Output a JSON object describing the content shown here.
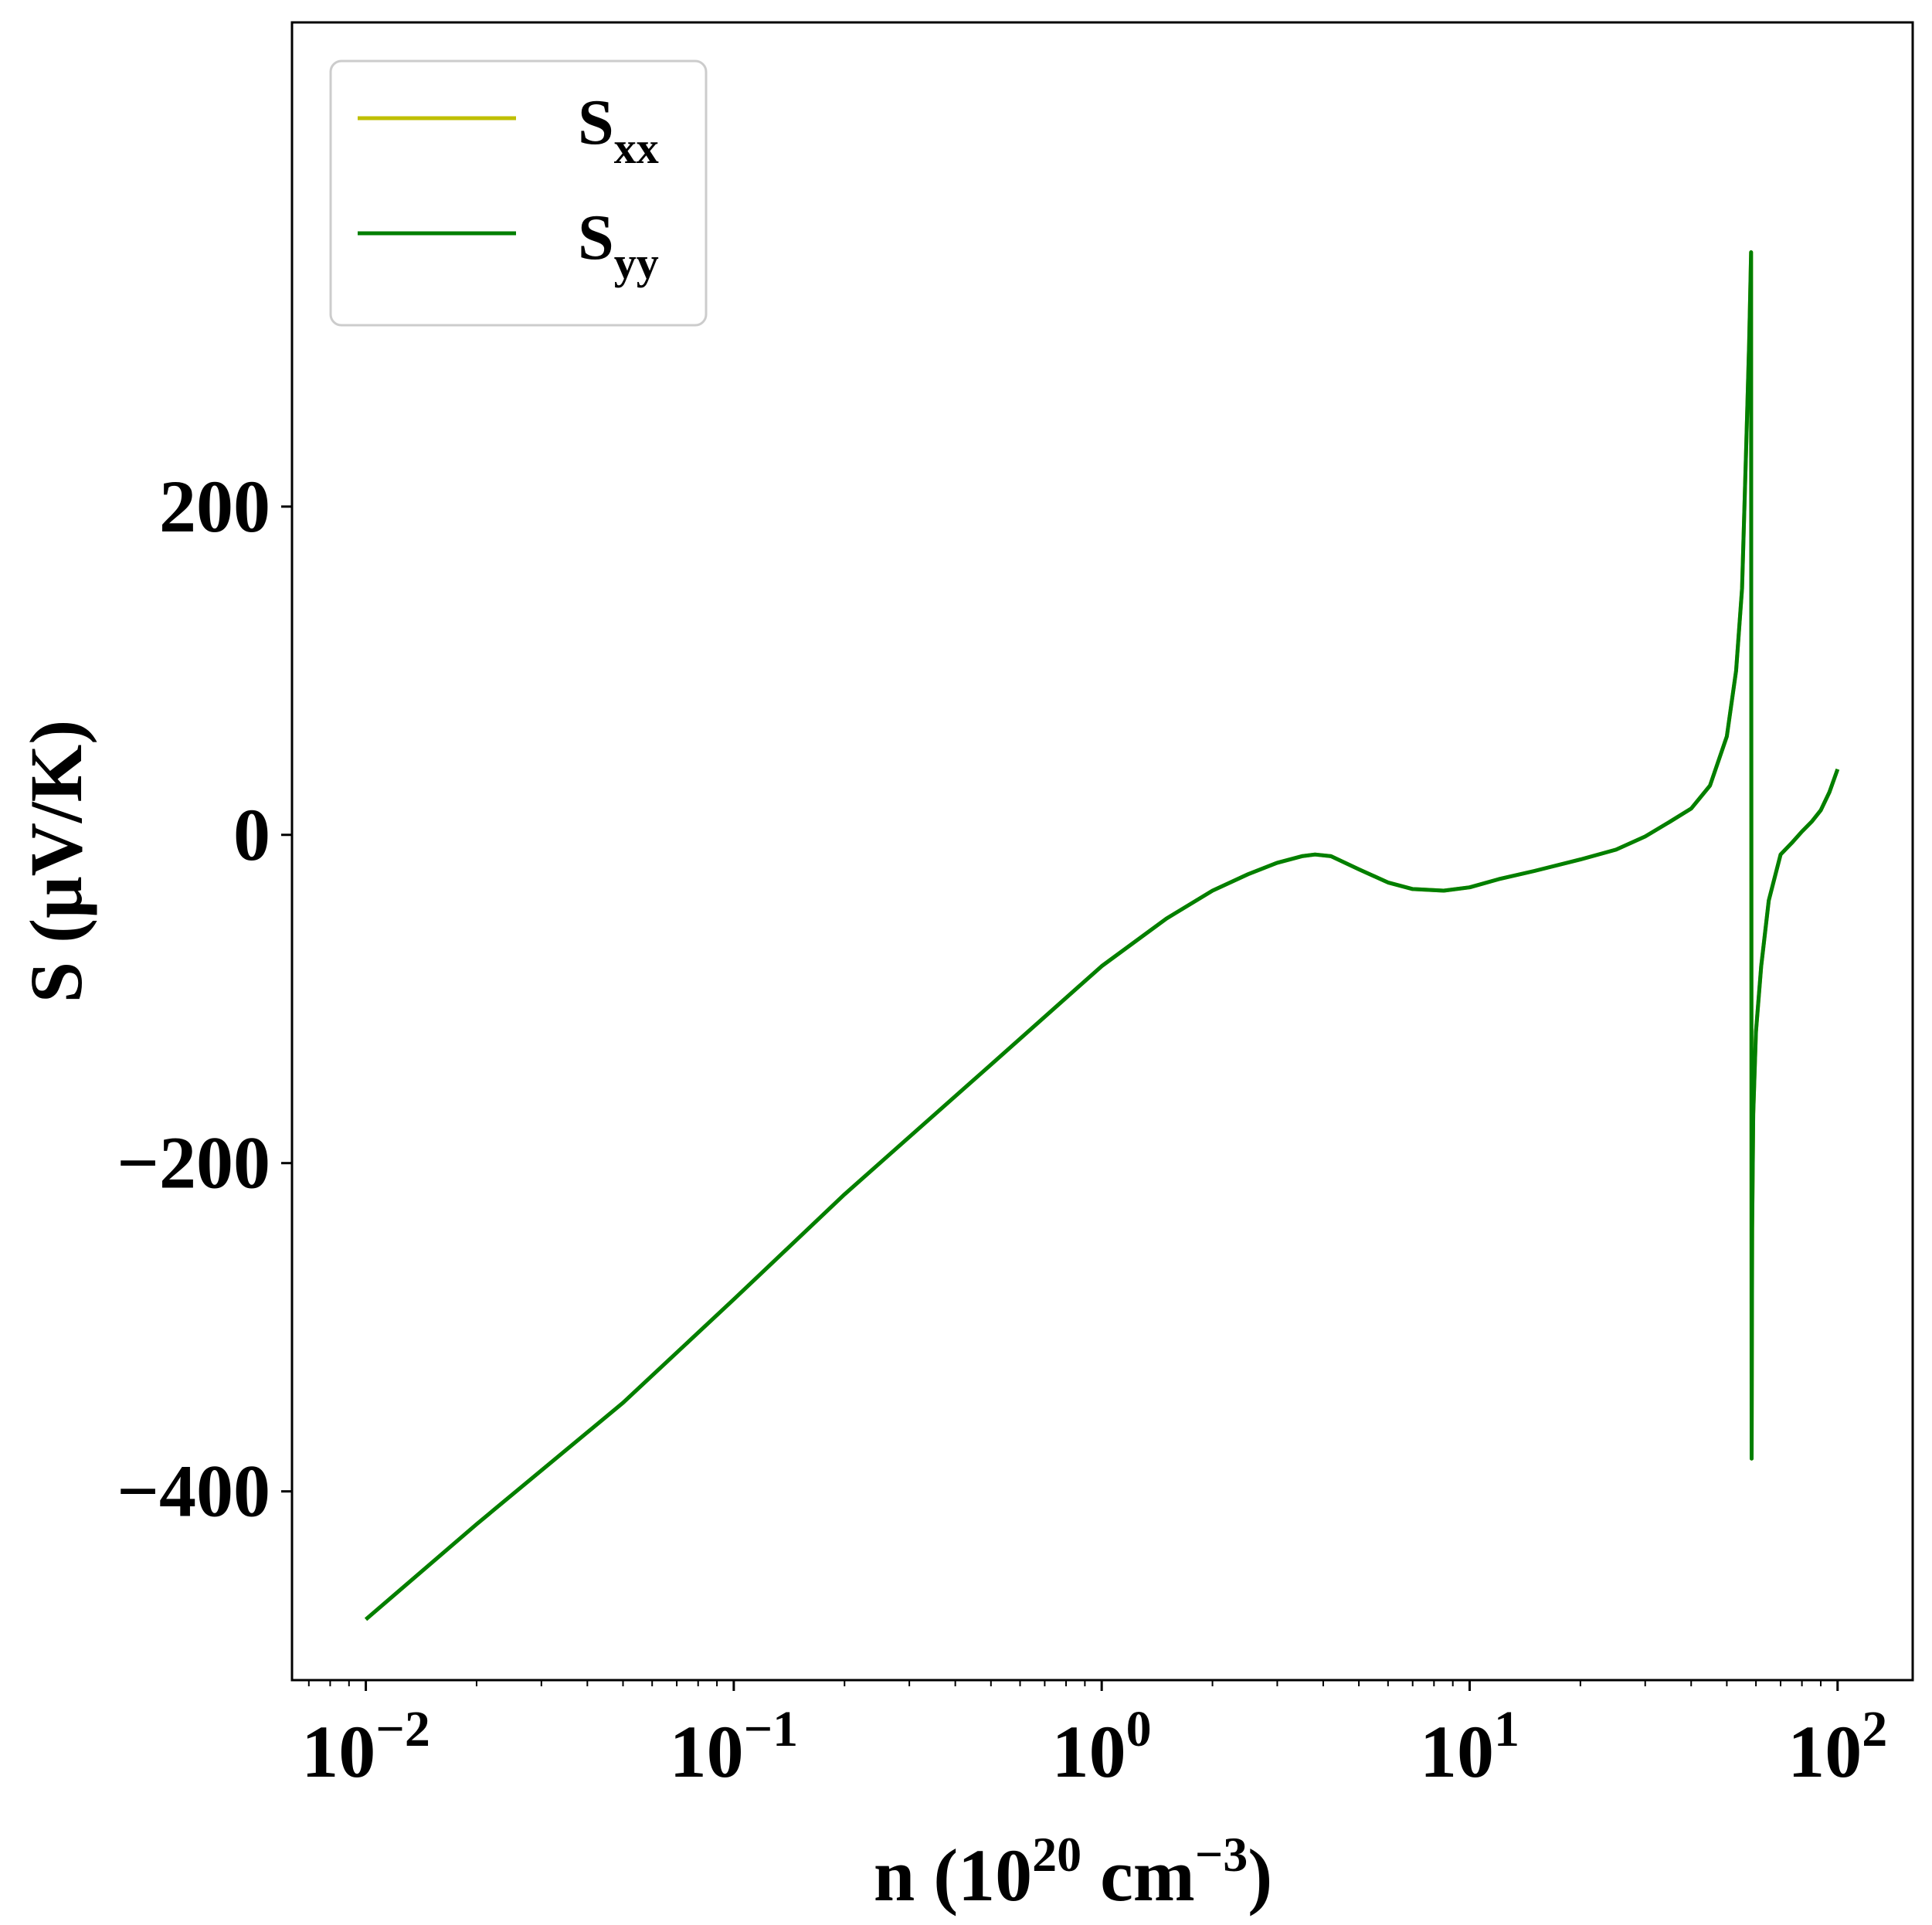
{
  "chart_data": {
    "type": "line",
    "x_scale": "log",
    "xlim": [
      0.0063,
      160
    ],
    "ylim": [
      -515,
      495
    ],
    "xlabel": {
      "base": "n (10",
      "exp1": "20",
      "mid": " cm",
      "exp2": "−3",
      "end": ")"
    },
    "ylabel": "S (μV/K)",
    "x_ticks": [
      {
        "value": 0.01,
        "base": "10",
        "exp": "−2"
      },
      {
        "value": 0.1,
        "base": "10",
        "exp": "−1"
      },
      {
        "value": 1,
        "base": "10",
        "exp": "0"
      },
      {
        "value": 10,
        "base": "10",
        "exp": "1"
      },
      {
        "value": 100,
        "base": "10",
        "exp": "2"
      }
    ],
    "y_ticks": [
      {
        "value": 200,
        "label": "200"
      },
      {
        "value": 0,
        "label": "0"
      },
      {
        "value": -200,
        "label": "−200"
      },
      {
        "value": -400,
        "label": "−400"
      }
    ],
    "grid": false,
    "legend": {
      "position": "top-left"
    },
    "series": [
      {
        "name": "S_xx",
        "legend_base": "S",
        "legend_sub": "xx",
        "color": "#bfbf00",
        "x": [
          0.01,
          0.02,
          0.05,
          0.1,
          0.2,
          0.5,
          1.0,
          1.5,
          2.0,
          2.5,
          3.0,
          3.5,
          3.8,
          4.2,
          5.0,
          6.0,
          7.0,
          8.5,
          10,
          12,
          15,
          20,
          25,
          30,
          35,
          40,
          45,
          50,
          53,
          55,
          56.5,
          57.5,
          58.2,
          58.4,
          58.6,
          59,
          60,
          62,
          65,
          70,
          75,
          80,
          85,
          90,
          95,
          100
        ],
        "y": [
          -478,
          -420,
          -346,
          -283,
          -219,
          -140,
          -80,
          -51,
          -34,
          -24,
          -17,
          -13,
          -12,
          -13,
          -21,
          -29,
          -33,
          -34,
          -32,
          -27,
          -22,
          -15,
          -9,
          -1,
          8,
          16,
          30,
          60,
          100,
          150,
          240,
          300,
          355,
          -380,
          -240,
          -170,
          -120,
          -80,
          -40,
          -12,
          -5,
          2,
          8,
          15,
          26,
          40
        ]
      },
      {
        "name": "S_yy",
        "legend_base": "S",
        "legend_sub": "yy",
        "color": "#007f00",
        "x": [
          0.01,
          0.02,
          0.05,
          0.1,
          0.2,
          0.5,
          1.0,
          1.5,
          2.0,
          2.5,
          3.0,
          3.5,
          3.8,
          4.2,
          5.0,
          6.0,
          7.0,
          8.5,
          10,
          12,
          15,
          20,
          25,
          30,
          35,
          40,
          45,
          50,
          53,
          55,
          56.5,
          57.5,
          58.2,
          58.4,
          58.6,
          59,
          60,
          62,
          65,
          70,
          75,
          80,
          85,
          90,
          95,
          100
        ],
        "y": [
          -478,
          -420,
          -346,
          -283,
          -219,
          -140,
          -80,
          -51,
          -34,
          -24,
          -17,
          -13,
          -12,
          -13,
          -21,
          -29,
          -33,
          -34,
          -32,
          -27,
          -22,
          -15,
          -9,
          -1,
          8,
          16,
          30,
          60,
          100,
          150,
          240,
          300,
          355,
          -380,
          -240,
          -170,
          -120,
          -80,
          -40,
          -12,
          -5,
          2,
          8,
          15,
          26,
          40
        ]
      }
    ]
  }
}
